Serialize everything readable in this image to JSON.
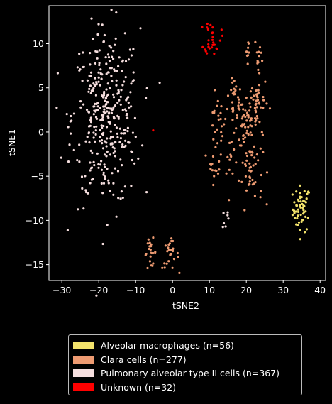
{
  "chart_data": {
    "type": "scatter",
    "xlabel": "tSNE2",
    "ylabel": "tSNE1",
    "xlim": [
      -33.5,
      41.5
    ],
    "ylim": [
      -16.8,
      14.3
    ],
    "xticks": [
      -30,
      -20,
      -10,
      0,
      10,
      20,
      30,
      40
    ],
    "yticks": [
      -15,
      -10,
      -5,
      0,
      5,
      10
    ],
    "xtick_labels": [
      "−30",
      "−20",
      "−10",
      "0",
      "10",
      "20",
      "30",
      "40"
    ],
    "ytick_labels": [
      "−15",
      "−10",
      "−5",
      "0",
      "5",
      "10"
    ],
    "grid": false,
    "legend_position": "below",
    "series": [
      {
        "name": "Alveolar macrophages (n=56)",
        "color": "#f2e26b",
        "clusters": [
          {
            "cx": 35.0,
            "cy": -8.7,
            "sx": 1.2,
            "sy": 1.3,
            "n": 56
          }
        ]
      },
      {
        "name": "Clara cells (n=277)",
        "color": "#ee9b72",
        "clusters": [
          {
            "cx": 12.2,
            "cy": 1.0,
            "sx": 1.2,
            "sy": 1.5,
            "n": 22
          },
          {
            "cx": 16.8,
            "cy": 3.8,
            "sx": 1.0,
            "sy": 1.2,
            "n": 20
          },
          {
            "cx": 18.5,
            "cy": 1.0,
            "sx": 1.6,
            "sy": 1.5,
            "n": 42
          },
          {
            "cx": 22.8,
            "cy": 3.3,
            "sx": 1.6,
            "sy": 1.6,
            "n": 46
          },
          {
            "cx": 21.2,
            "cy": -4.0,
            "sx": 1.6,
            "sy": 2.1,
            "n": 52
          },
          {
            "cx": 11.6,
            "cy": -3.0,
            "sx": 0.9,
            "sy": 1.4,
            "n": 16
          },
          {
            "cx": 16.0,
            "cy": -4.3,
            "sx": 0.7,
            "sy": 1.0,
            "n": 10
          },
          {
            "cx": 20.4,
            "cy": 9.2,
            "sx": 0.3,
            "sy": 1.2,
            "n": 8
          },
          {
            "cx": 23.5,
            "cy": 8.4,
            "sx": 0.6,
            "sy": 1.4,
            "n": 14
          },
          {
            "cx": -6.0,
            "cy": -13.7,
            "sx": 0.8,
            "sy": 0.8,
            "n": 22
          },
          {
            "cx": -0.6,
            "cy": -13.9,
            "sx": 1.1,
            "sy": 0.8,
            "n": 25
          }
        ]
      },
      {
        "name": "Pulmonary alveolar type II cells (n=367)",
        "color": "#f5dede",
        "clusters": [
          {
            "cx": -18.0,
            "cy": 1.6,
            "sx": 4.6,
            "sy": 5.0,
            "n": 360
          },
          {
            "cx": 14.2,
            "cy": -9.8,
            "sx": 0.8,
            "sy": 0.8,
            "n": 7
          }
        ]
      },
      {
        "name": "Unknown (n=32)",
        "color": "#ff0000",
        "clusters": [
          {
            "cx": 10.9,
            "cy": 10.8,
            "sx": 1.1,
            "sy": 1.0,
            "n": 31
          },
          {
            "cx": -5.3,
            "cy": 0.0,
            "sx": 0.2,
            "sy": 0.2,
            "n": 1
          }
        ]
      }
    ]
  }
}
